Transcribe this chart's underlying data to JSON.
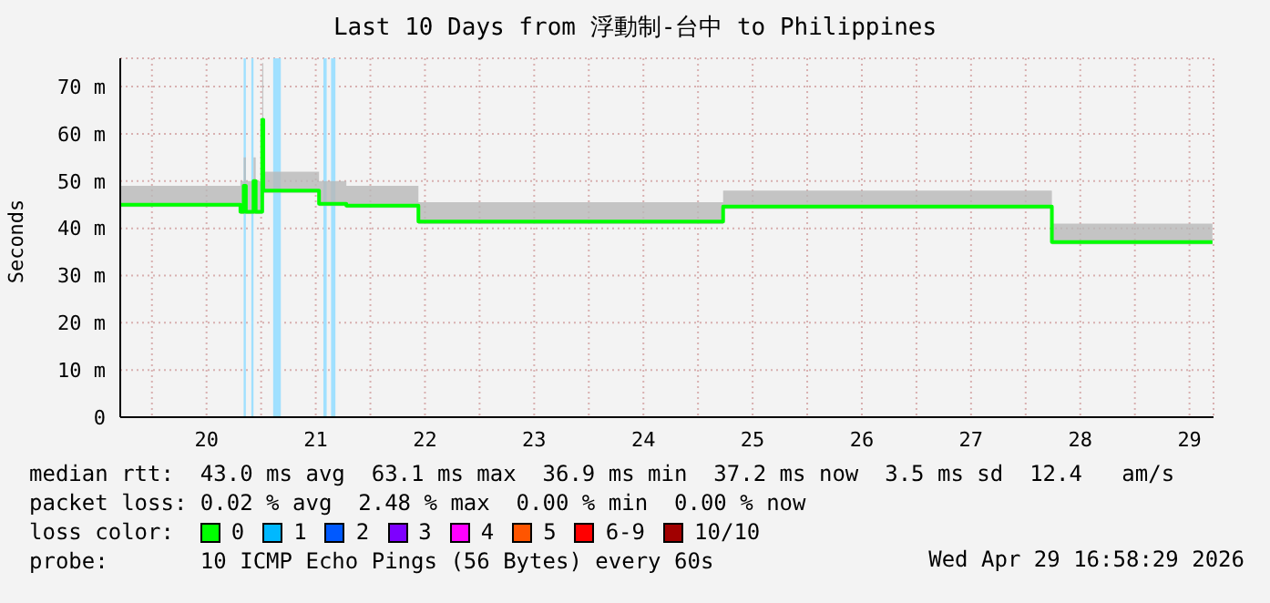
{
  "chart_data": {
    "type": "step",
    "title": "Last 10 Days from 浮動制-台中 to Philippines",
    "ylabel": "Seconds",
    "x": [
      19.71,
      20.81,
      20.84,
      20.86,
      20.93,
      20.95,
      21.01,
      21.02,
      21.53,
      21.78,
      22.44,
      25.23,
      28.24,
      29.71
    ],
    "series": [
      {
        "name": "0",
        "color": "#00ff00",
        "values": [
          45,
          43.5,
          49,
          43.5,
          50,
          43.5,
          63,
          48,
          45.2,
          44.8,
          41.4,
          44.6,
          37.1,
          37.1
        ],
        "lower": [
          44.5,
          43,
          43,
          43,
          43,
          43,
          47,
          47.5,
          44.7,
          44.3,
          40.9,
          44.1,
          36.6,
          36.6
        ],
        "upper": [
          49,
          50,
          55,
          50,
          55,
          50,
          75,
          52,
          50,
          49,
          45.5,
          48,
          41,
          41
        ]
      },
      {
        "name": "1",
        "color": "#00b8ff",
        "values": [
          null,
          null,
          null,
          null,
          null,
          null,
          null,
          null,
          null,
          null,
          null,
          null,
          null,
          null
        ]
      },
      {
        "name": "2",
        "color": "#0059ff",
        "values": [
          null,
          null,
          null,
          null,
          null,
          null,
          null,
          null,
          null,
          null,
          null,
          null,
          null,
          null
        ]
      },
      {
        "name": "3",
        "color": "#7e00ff",
        "values": [
          null,
          null,
          null,
          null,
          null,
          null,
          null,
          null,
          null,
          null,
          null,
          null,
          null,
          null
        ]
      },
      {
        "name": "4",
        "color": "#ff00ff",
        "values": [
          null,
          null,
          null,
          null,
          null,
          null,
          null,
          null,
          null,
          null,
          null,
          null,
          null,
          null
        ]
      },
      {
        "name": "5",
        "color": "#ff5500",
        "values": [
          null,
          null,
          null,
          null,
          null,
          null,
          null,
          null,
          null,
          null,
          null,
          null,
          null,
          null
        ]
      },
      {
        "name": "6-9",
        "color": "#ff0000",
        "values": [
          null,
          null,
          null,
          null,
          null,
          null,
          null,
          null,
          null,
          null,
          null,
          null,
          null,
          null
        ]
      },
      {
        "name": "10/10",
        "color": "#a10000",
        "values": [
          null,
          null,
          null,
          null,
          null,
          null,
          null,
          null,
          null,
          null,
          null,
          null,
          null,
          null
        ]
      }
    ],
    "bands": [
      {
        "axis": "x",
        "from": 20.84,
        "to": 20.86,
        "color": "#a0e0ff"
      },
      {
        "axis": "x",
        "from": 20.91,
        "to": 20.93,
        "color": "#a0e0ff"
      },
      {
        "axis": "x",
        "from": 21.11,
        "to": 21.18,
        "color": "#a0e0ff"
      },
      {
        "axis": "x",
        "from": 21.57,
        "to": 21.6,
        "color": "#a0e0ff"
      },
      {
        "axis": "x",
        "from": 21.64,
        "to": 21.68,
        "color": "#a0e0ff"
      }
    ],
    "xlim": [
      19.71,
      29.72
    ],
    "xticks": [
      {
        "value": 20,
        "label": null
      },
      {
        "value": 20.5,
        "label": "20"
      },
      {
        "value": 21,
        "label": null
      },
      {
        "value": 21.5,
        "label": "21"
      },
      {
        "value": 22,
        "label": null
      },
      {
        "value": 22.5,
        "label": "22"
      },
      {
        "value": 23,
        "label": null
      },
      {
        "value": 23.5,
        "label": "23"
      },
      {
        "value": 24,
        "label": null
      },
      {
        "value": 24.5,
        "label": "24"
      },
      {
        "value": 25,
        "label": null
      },
      {
        "value": 25.5,
        "label": "25"
      },
      {
        "value": 26,
        "label": null
      },
      {
        "value": 26.5,
        "label": "26"
      },
      {
        "value": 27,
        "label": null
      },
      {
        "value": 27.5,
        "label": "27"
      },
      {
        "value": 28,
        "label": null
      },
      {
        "value": 28.5,
        "label": "28"
      },
      {
        "value": 29,
        "label": null
      },
      {
        "value": 29.5,
        "label": "29"
      }
    ],
    "ylim": [
      0,
      76
    ],
    "yticks": [
      0,
      {
        "value": 10,
        "label": "10 m"
      },
      {
        "value": 20,
        "label": "20 m"
      },
      {
        "value": 30,
        "label": "30 m"
      },
      {
        "value": 40,
        "label": "40 m"
      },
      {
        "value": 50,
        "label": "50 m"
      },
      {
        "value": 60,
        "label": "60 m"
      },
      {
        "value": 70,
        "label": "70 m"
      }
    ],
    "grid": true,
    "legend": "bottom",
    "legend_title": "loss color:",
    "marker": "none",
    "line_style": "solid",
    "annotations": [
      "median rtt:  43.0 ms avg  63.1 ms max  36.9 ms min  37.2 ms now  3.5 ms sd  12.4   am/s",
      "packet loss: 0.02 % avg  2.48 % max  0.00 % min  0.00 % now",
      "probe:       10 ICMP Echo Pings (56 Bytes) every 60s",
      "Wed Apr 29 16:58:29 2026"
    ]
  }
}
